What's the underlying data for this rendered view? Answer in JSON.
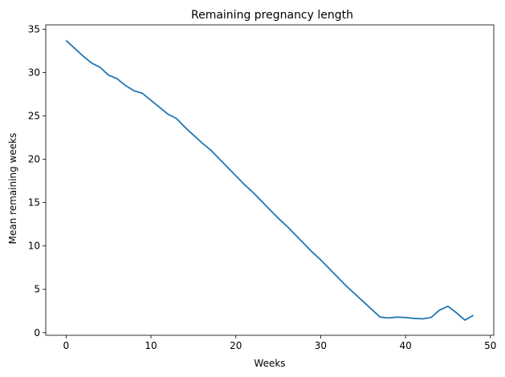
{
  "chart_data": {
    "type": "line",
    "title": "Remaining pregnancy length",
    "xlabel": "Weeks",
    "ylabel": "Mean remaining weeks",
    "xlim": [
      -2.4,
      50.4
    ],
    "ylim": [
      -0.3,
      35.5
    ],
    "xticks": [
      0,
      10,
      20,
      30,
      40,
      50
    ],
    "yticks": [
      0,
      5,
      10,
      15,
      20,
      25,
      30,
      35
    ],
    "grid": false,
    "legend": "none",
    "series": [
      {
        "color": "#1f77b4",
        "x": [
          0,
          1,
          2,
          3,
          4,
          5,
          6,
          7,
          8,
          9,
          10,
          11,
          12,
          13,
          14,
          15,
          16,
          17,
          18,
          19,
          20,
          21,
          22,
          23,
          24,
          25,
          26,
          27,
          28,
          29,
          30,
          31,
          32,
          33,
          34,
          35,
          36,
          37,
          38,
          39,
          40,
          41,
          42,
          43,
          44,
          45,
          46,
          47,
          48
        ],
        "y": [
          33.7,
          32.8,
          31.9,
          31.1,
          30.6,
          29.7,
          29.3,
          28.5,
          27.9,
          27.6,
          26.8,
          26.0,
          25.2,
          24.7,
          23.7,
          22.8,
          21.9,
          21.1,
          20.1,
          19.1,
          18.1,
          17.1,
          16.2,
          15.2,
          14.2,
          13.2,
          12.3,
          11.3,
          10.3,
          9.3,
          8.4,
          7.4,
          6.4,
          5.4,
          4.5,
          3.6,
          2.7,
          1.8,
          1.7,
          1.8,
          1.75,
          1.65,
          1.6,
          1.75,
          2.6,
          3.05,
          2.3,
          1.45,
          2.0
        ]
      }
    ]
  }
}
